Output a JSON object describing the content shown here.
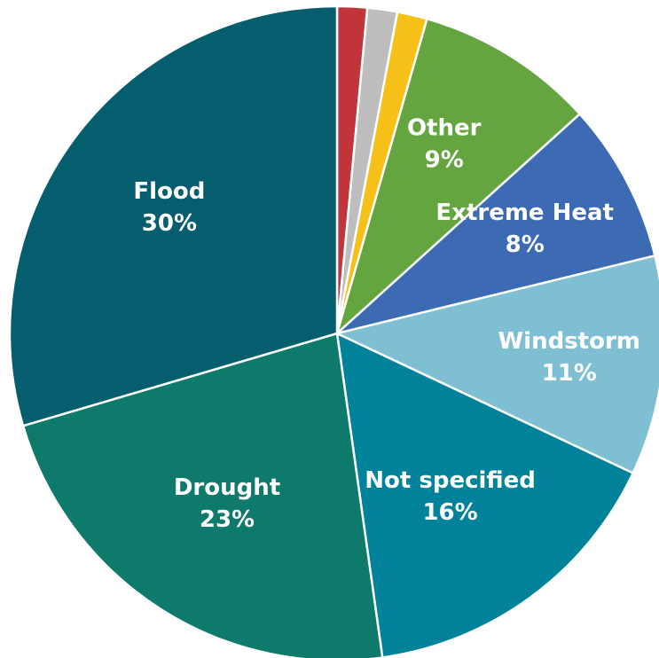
{
  "chart_data": {
    "type": "pie",
    "title": "",
    "slices": [
      {
        "label": "",
        "percent_label": "",
        "value": 1.5,
        "color": "#c0343a"
      },
      {
        "label": "",
        "percent_label": "",
        "value": 1.5,
        "color": "#bdbdbd"
      },
      {
        "label": "",
        "percent_label": "",
        "value": 1.5,
        "color": "#f5c018"
      },
      {
        "label": "Other",
        "percent_label": "9%",
        "value": 9,
        "color": "#64a53f"
      },
      {
        "label": "Extreme Heat",
        "percent_label": "8%",
        "value": 8,
        "color": "#3d6bb3"
      },
      {
        "label": "Windstorm",
        "percent_label": "11%",
        "value": 11,
        "color": "#7fbfd4"
      },
      {
        "label": "Not specified",
        "percent_label": "16%",
        "value": 16,
        "color": "#00839a"
      },
      {
        "label": "Drought",
        "percent_label": "23%",
        "value": 23,
        "color": "#0d7a6c"
      },
      {
        "label": "Flood",
        "percent_label": "30%",
        "value": 30,
        "color": "#055e6e"
      }
    ],
    "start": "12 o'clock",
    "direction": "clockwise",
    "legend": "none (labels on slices)"
  }
}
